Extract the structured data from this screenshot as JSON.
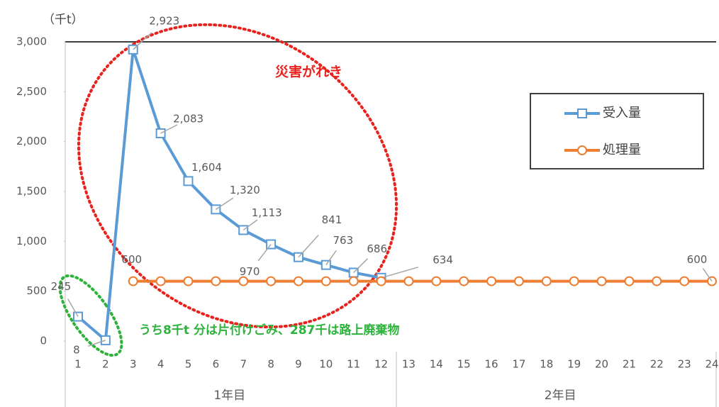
{
  "chart_data": {
    "type": "line",
    "unit_label": "（千t）",
    "categories": [
      "1",
      "2",
      "3",
      "4",
      "5",
      "6",
      "7",
      "8",
      "9",
      "10",
      "11",
      "12",
      "13",
      "14",
      "15",
      "16",
      "17",
      "18",
      "19",
      "20",
      "21",
      "22",
      "23",
      "24"
    ],
    "groups": [
      {
        "label": "1年目",
        "span": 12
      },
      {
        "label": "2年目",
        "span": 12
      }
    ],
    "series": [
      {
        "name": "受入量",
        "color": "#5b9bd5",
        "marker": "square",
        "values": [
          245,
          8,
          2923,
          2083,
          1604,
          1320,
          1113,
          970,
          841,
          763,
          686,
          634,
          null,
          null,
          null,
          null,
          null,
          null,
          null,
          null,
          null,
          null,
          null,
          null
        ],
        "value_labels": [
          "245",
          "8",
          "2,923",
          "2,083",
          "1,604",
          "1,320",
          "1,113",
          "970",
          "841",
          "763",
          "686",
          "634",
          null,
          null,
          null,
          null,
          null,
          null,
          null,
          null,
          null,
          null,
          null,
          null
        ]
      },
      {
        "name": "処理量",
        "color": "#ed7d31",
        "marker": "circle",
        "values": [
          null,
          null,
          600,
          600,
          600,
          600,
          600,
          600,
          600,
          600,
          600,
          600,
          600,
          600,
          600,
          600,
          600,
          600,
          600,
          600,
          600,
          600,
          600,
          600
        ],
        "value_labels": [
          null,
          null,
          "600",
          null,
          null,
          null,
          null,
          null,
          null,
          null,
          null,
          null,
          null,
          null,
          null,
          null,
          null,
          null,
          null,
          null,
          null,
          null,
          null,
          "600"
        ]
      }
    ],
    "ylim": [
      0,
      3000
    ],
    "yticks": [
      0,
      500,
      {
        "value": 1000,
        "label": "1,000"
      },
      {
        "value": 1500,
        "label": "1,500"
      },
      {
        "value": 2000,
        "label": "2,000"
      },
      {
        "value": 2500,
        "label": "2,500"
      },
      {
        "value": 3000,
        "label": "3,000"
      }
    ],
    "legend": "right",
    "annotations": [
      {
        "text": "災害がれき",
        "color": "#e8231e"
      },
      {
        "text": "うち8千t 分は片付けごみ、287千は路上廃棄物",
        "color": "#2db33c"
      }
    ]
  }
}
